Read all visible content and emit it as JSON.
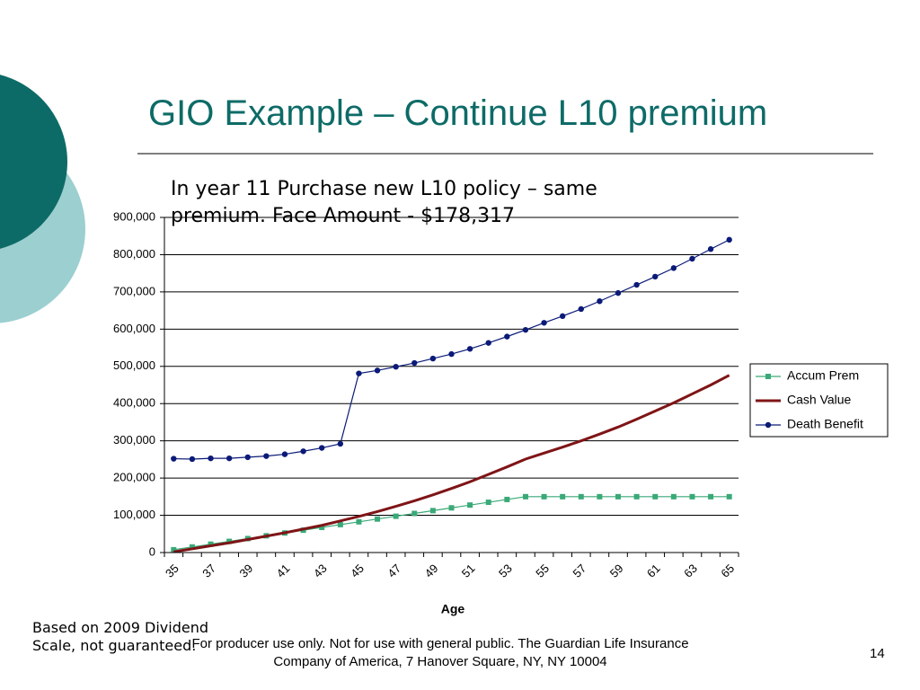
{
  "slide": {
    "title": "GIO Example – Continue L10 premium",
    "subtitle": [
      "In year 11 Purchase new L10 policy – same",
      "premium.  Face Amount - $178,317"
    ],
    "note": [
      "Based on 2009 Dividend",
      "Scale, not guaranteed."
    ],
    "footer": [
      "For producer use only.  Not for use with general public.  The Guardian Life Insurance",
      "Company of America, 7 Hanover Square, NY, NY 10004"
    ],
    "page_number": "14"
  },
  "chart_data": {
    "type": "line",
    "x_label": "Age",
    "categories": [
      "35",
      null,
      "37",
      null,
      "39",
      null,
      "41",
      null,
      "43",
      null,
      "45",
      null,
      "47",
      null,
      "49",
      null,
      "51",
      null,
      "53",
      null,
      "55",
      null,
      "57",
      null,
      "59",
      null,
      "61",
      null,
      "63",
      null,
      "65"
    ],
    "series": [
      {
        "name": "Accum Prem",
        "color": "#3aa978",
        "marker": "square",
        "values": [
          7500,
          15000,
          22500,
          30000,
          37500,
          45000,
          52500,
          60000,
          67500,
          75000,
          82500,
          90000,
          97500,
          105000,
          112500,
          120000,
          127500,
          135000,
          142500,
          150000,
          150000,
          150000,
          150000,
          150000,
          150000,
          150000,
          150000,
          150000,
          150000,
          150000,
          150000
        ]
      },
      {
        "name": "Cash Value",
        "color": "#7f1416",
        "marker": "none",
        "values": [
          2000,
          10000,
          18000,
          26000,
          35000,
          44000,
          53000,
          63000,
          73000,
          85000,
          97000,
          110000,
          124000,
          139000,
          155000,
          172000,
          190000,
          210000,
          230000,
          251000,
          267000,
          283000,
          300000,
          318000,
          337000,
          358000,
          380000,
          402000,
          426000,
          450000,
          476000
        ]
      },
      {
        "name": "Death Benefit",
        "color": "#0b1a78",
        "marker": "circle",
        "values": [
          252000,
          251000,
          253000,
          253000,
          256000,
          259000,
          264000,
          272000,
          281000,
          292000,
          481000,
          489000,
          499000,
          509000,
          521000,
          533000,
          547000,
          563000,
          580000,
          598000,
          617000,
          635000,
          654000,
          675000,
          697000,
          719000,
          741000,
          764000,
          789000,
          815000,
          840000
        ]
      }
    ],
    "ylim": [
      0,
      900000
    ],
    "yticks": [
      0,
      {
        "value": 100000,
        "label": "100,000"
      },
      {
        "value": 200000,
        "label": "200,000"
      },
      {
        "value": 300000,
        "label": "300,000"
      },
      {
        "value": 400000,
        "label": "400,000"
      },
      {
        "value": 500000,
        "label": "500,000"
      },
      {
        "value": 600000,
        "label": "600,000"
      },
      {
        "value": 700000,
        "label": "700,000"
      },
      {
        "value": 800000,
        "label": "800,000"
      },
      {
        "value": 900000,
        "label": "900,000"
      }
    ],
    "grid": true,
    "legend": "right"
  }
}
